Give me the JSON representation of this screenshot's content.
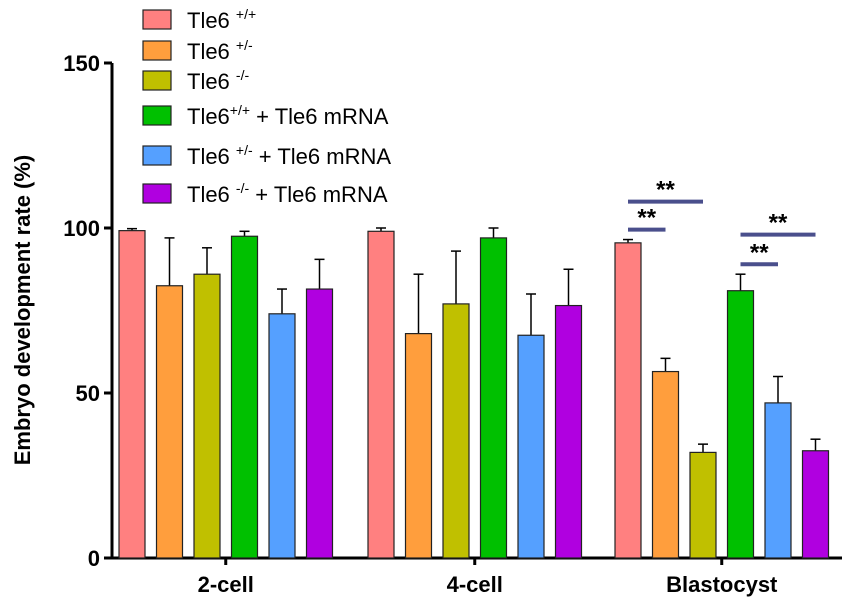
{
  "chart_data": {
    "type": "bar",
    "title": "",
    "xlabel": "",
    "ylabel": "Embryo development rate (%)",
    "ylim": [
      0,
      150
    ],
    "yticks": [
      "0",
      "50",
      "100",
      "150"
    ],
    "categories": [
      "2-cell",
      "4-cell",
      "Blastocyst"
    ],
    "legend_position": "top-left",
    "series": [
      {
        "name": "Tle6",
        "sup": "+/+",
        "suffix": "",
        "color": "#FF8080",
        "values": [
          99.2,
          99.0,
          95.5
        ],
        "errors": [
          0.6,
          1.0,
          1.0
        ]
      },
      {
        "name": "Tle6",
        "sup": "+/-",
        "suffix": "",
        "color": "#FF9E3D",
        "values": [
          82.5,
          68.0,
          56.5
        ],
        "errors": [
          14.5,
          18.0,
          4.0
        ]
      },
      {
        "name": "Tle6",
        "sup": "-/-",
        "suffix": "",
        "color": "#C0C000",
        "values": [
          86.0,
          77.0,
          32.0
        ],
        "errors": [
          8.0,
          16.0,
          2.5
        ]
      },
      {
        "name": "Tle6",
        "sup": "+/+",
        "suffix": " + Tle6 mRNA",
        "color": "#00C000",
        "values": [
          97.5,
          97.0,
          81.0
        ],
        "errors": [
          1.5,
          3.0,
          5.0
        ]
      },
      {
        "name": "Tle6",
        "sup": "+/-",
        "suffix": " + Tle6 mRNA",
        "color": "#55A0FF",
        "values": [
          74.0,
          67.5,
          47.0
        ],
        "errors": [
          7.5,
          12.5,
          8.0
        ]
      },
      {
        "name": "Tle6",
        "sup": "-/-",
        "suffix": " + Tle6 mRNA",
        "color": "#B000E0",
        "values": [
          81.5,
          76.5,
          32.5
        ],
        "errors": [
          9.0,
          11.0,
          3.5
        ]
      }
    ],
    "annotations": [
      {
        "text": "**",
        "category": "Blastocyst",
        "from_series": 0,
        "to_series": 2,
        "y": 108
      },
      {
        "text": "**",
        "category": "Blastocyst",
        "from_series": 0,
        "to_series": 1,
        "y": 99.5
      },
      {
        "text": "**",
        "category": "Blastocyst",
        "from_series": 3,
        "to_series": 5,
        "y": 98
      },
      {
        "text": "**",
        "category": "Blastocyst",
        "from_series": 3,
        "to_series": 4,
        "y": 89
      }
    ]
  }
}
